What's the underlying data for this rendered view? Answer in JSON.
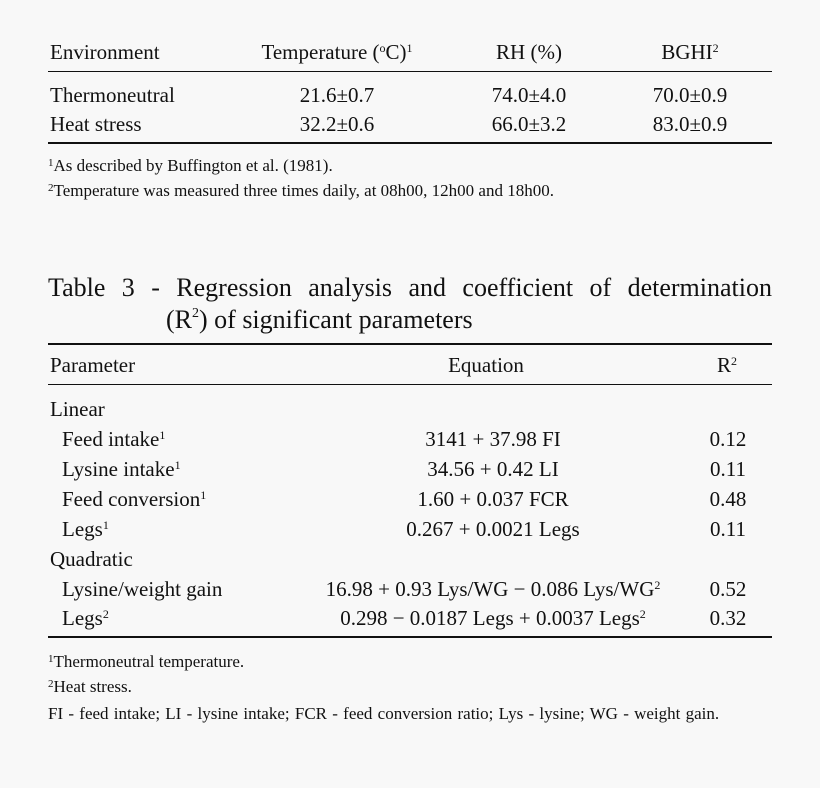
{
  "table2": {
    "headers": {
      "environment": "Environment",
      "temperature": "Temperature (",
      "temperature_deg": "o",
      "temperature_unit": "C)",
      "temperature_sup": "1",
      "rh": "RH (%)",
      "bghi": "BGHI",
      "bghi_sup": "2"
    },
    "rows": [
      {
        "environment": "Thermoneutral",
        "temperature": "21.6±0.7",
        "rh": "74.0±4.0",
        "bghi": "70.0±0.9"
      },
      {
        "environment": "Heat stress",
        "temperature": "32.2±0.6",
        "rh": "66.0±3.2",
        "bghi": "83.0±0.9"
      }
    ],
    "footnotes": [
      {
        "sup": "1",
        "text": "As described by Buffington et al. (1981)."
      },
      {
        "sup": "2",
        "text": "Temperature was measured three times daily, at 08h00, 12h00 and 18h00."
      }
    ]
  },
  "table3": {
    "caption_line1": "Table 3 - Regression analysis and coefficient of determination",
    "caption_line2_pre": "(R",
    "caption_line2_sup": "2",
    "caption_line2_post": ") of significant parameters",
    "headers": {
      "parameter": "Parameter",
      "equation": "Equation",
      "r2": "R",
      "r2_sup": "2"
    },
    "groups": [
      {
        "label": "Linear"
      },
      {
        "label": "Quadratic"
      }
    ],
    "rows": [
      {
        "parameter": "Feed intake",
        "sup": "1",
        "equation": "3141 + 37.98 FI",
        "eq_sup": "",
        "r2": "0.12"
      },
      {
        "parameter": "Lysine intake",
        "sup": "1",
        "equation": "34.56 + 0.42 LI",
        "eq_sup": "",
        "r2": "0.11"
      },
      {
        "parameter": "Feed conversion",
        "sup": "1",
        "equation": "1.60 + 0.037 FCR",
        "eq_sup": "",
        "r2": "0.48"
      },
      {
        "parameter": "Legs",
        "sup": "1",
        "equation": "0.267 + 0.0021 Legs",
        "eq_sup": "",
        "r2": "0.11"
      },
      {
        "parameter": "Lysine/weight gain",
        "sup": "",
        "equation": "16.98 + 0.93 Lys/WG − 0.086 Lys/WG",
        "eq_sup": "2",
        "r2": "0.52"
      },
      {
        "parameter": "Legs",
        "sup": "2",
        "equation": "0.298 − 0.0187 Legs + 0.0037 Legs",
        "eq_sup": "2",
        "r2": "0.32"
      }
    ],
    "footnotes": [
      {
        "sup": "1",
        "text": "Thermoneutral temperature."
      },
      {
        "sup": "2",
        "text": "Heat stress."
      }
    ],
    "abbreviations": "FI - feed intake; LI - lysine intake; FCR - feed conversion ratio; Lys - lysine; WG - weight gain."
  }
}
